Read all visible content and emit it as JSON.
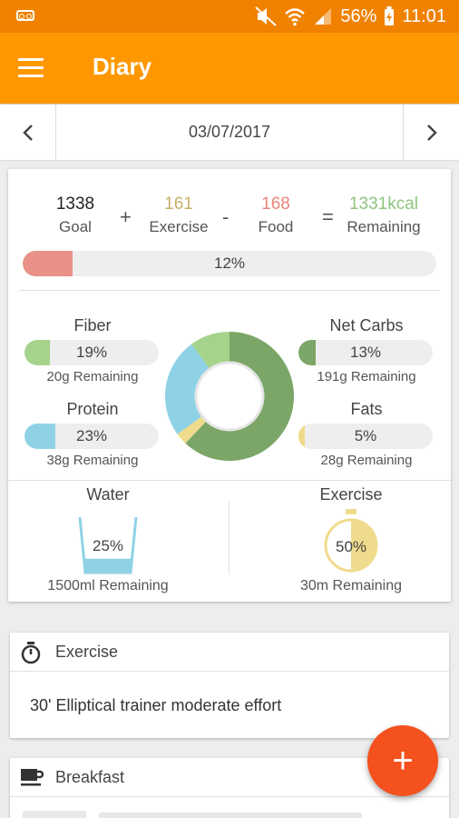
{
  "status": {
    "battery": "56%",
    "time": "11:01",
    "icons": [
      "voicemail-icon",
      "mute-icon",
      "wifi-icon",
      "signal-icon",
      "battery-icon"
    ]
  },
  "appbar": {
    "title": "Diary",
    "menu_icon": "hamburger-icon"
  },
  "datenav": {
    "date": "03/07/2017",
    "prev_icon": "chevron-left-icon",
    "next_icon": "chevron-right-icon"
  },
  "calories": {
    "goal": {
      "value": "1338",
      "label": "Goal"
    },
    "exercise": {
      "value": "161",
      "label": "Exercise"
    },
    "food": {
      "value": "168",
      "label": "Food"
    },
    "remaining": {
      "value": "1331kcal",
      "label": "Remaining"
    },
    "ops": {
      "plus": "+",
      "minus": "-",
      "equals": "="
    },
    "progress_label": "12%",
    "progress": 0.12,
    "colors": {
      "exercise": "#c9b16b",
      "food": "#e8877a",
      "remaining": "#8fc47c",
      "bar": "#e99189"
    }
  },
  "macros": {
    "fiber": {
      "name": "Fiber",
      "percent": "19%",
      "remaining": "20g Remaining",
      "progress": 0.19,
      "color": "#a5d38b"
    },
    "protein": {
      "name": "Protein",
      "percent": "23%",
      "remaining": "38g Remaining",
      "progress": 0.23,
      "color": "#8fd2e6"
    },
    "net_carbs": {
      "name": "Net Carbs",
      "percent": "13%",
      "remaining": "191g Remaining",
      "progress": 0.13,
      "color": "#7ba667"
    },
    "fats": {
      "name": "Fats",
      "percent": "5%",
      "remaining": "28g Remaining",
      "progress": 0.05,
      "color": "#efdb8c"
    }
  },
  "donut": {
    "segments": [
      {
        "name": "Net Carbs",
        "fraction": 0.62,
        "color": "#7ba667"
      },
      {
        "name": "Fats",
        "fraction": 0.03,
        "color": "#efdb8c"
      },
      {
        "name": "Protein",
        "fraction": 0.25,
        "color": "#8fd2e6"
      },
      {
        "name": "Fiber",
        "fraction": 0.1,
        "color": "#a5d38b"
      }
    ]
  },
  "water": {
    "name": "Water",
    "percent": "25%",
    "remaining": "1500ml Remaining",
    "progress": 0.25,
    "color": "#8fd2e6"
  },
  "exercise_goal": {
    "name": "Exercise",
    "percent": "50%",
    "remaining": "30m Remaining",
    "progress": 0.5,
    "color": "#efdb8c"
  },
  "exercise_card": {
    "title": "Exercise",
    "icon": "stopwatch-icon",
    "entry": "30' Elliptical trainer  moderate effort"
  },
  "breakfast_card": {
    "title": "Breakfast",
    "icon": "coffee-cup-icon"
  },
  "fab": {
    "label": "+",
    "icon": "plus-icon"
  }
}
